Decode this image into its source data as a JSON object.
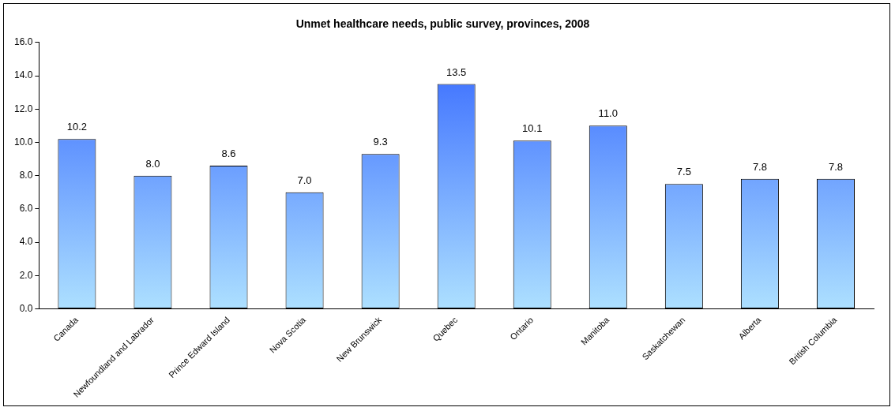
{
  "chart_data": {
    "type": "bar",
    "title": "Unmet healthcare needs, public survey, provinces, 2008",
    "categories": [
      "Canada",
      "Newfoundland and Labrador",
      "Prince Edward Island",
      "Nova Scotia",
      "New Brunswick",
      "Quebec",
      "Ontario",
      "Manitoba",
      "Saskatchewan",
      "Alberta",
      "British Columbia"
    ],
    "values": [
      10.2,
      8.0,
      8.6,
      7.0,
      9.3,
      13.5,
      10.1,
      11.0,
      7.5,
      7.8,
      7.8
    ],
    "value_labels": [
      "10.2",
      "8.0",
      "8.6",
      "7.0",
      "9.3",
      "13.5",
      "10.1",
      "11.0",
      "7.5",
      "7.8",
      "7.8"
    ],
    "color": "#3366ff",
    "ylim": [
      0,
      16
    ],
    "yticks": [
      {
        "value": 0,
        "label": "0.0"
      },
      {
        "value": 2,
        "label": "2.0"
      },
      {
        "value": 4,
        "label": "4.0"
      },
      {
        "value": 6,
        "label": "6.0"
      },
      {
        "value": 8,
        "label": "8.0"
      },
      {
        "value": 10,
        "label": "10.0"
      },
      {
        "value": 12,
        "label": "12.0"
      },
      {
        "value": 14,
        "label": "14.0"
      },
      {
        "value": 16,
        "label": "16.0"
      }
    ],
    "grid": false,
    "legend": false
  }
}
